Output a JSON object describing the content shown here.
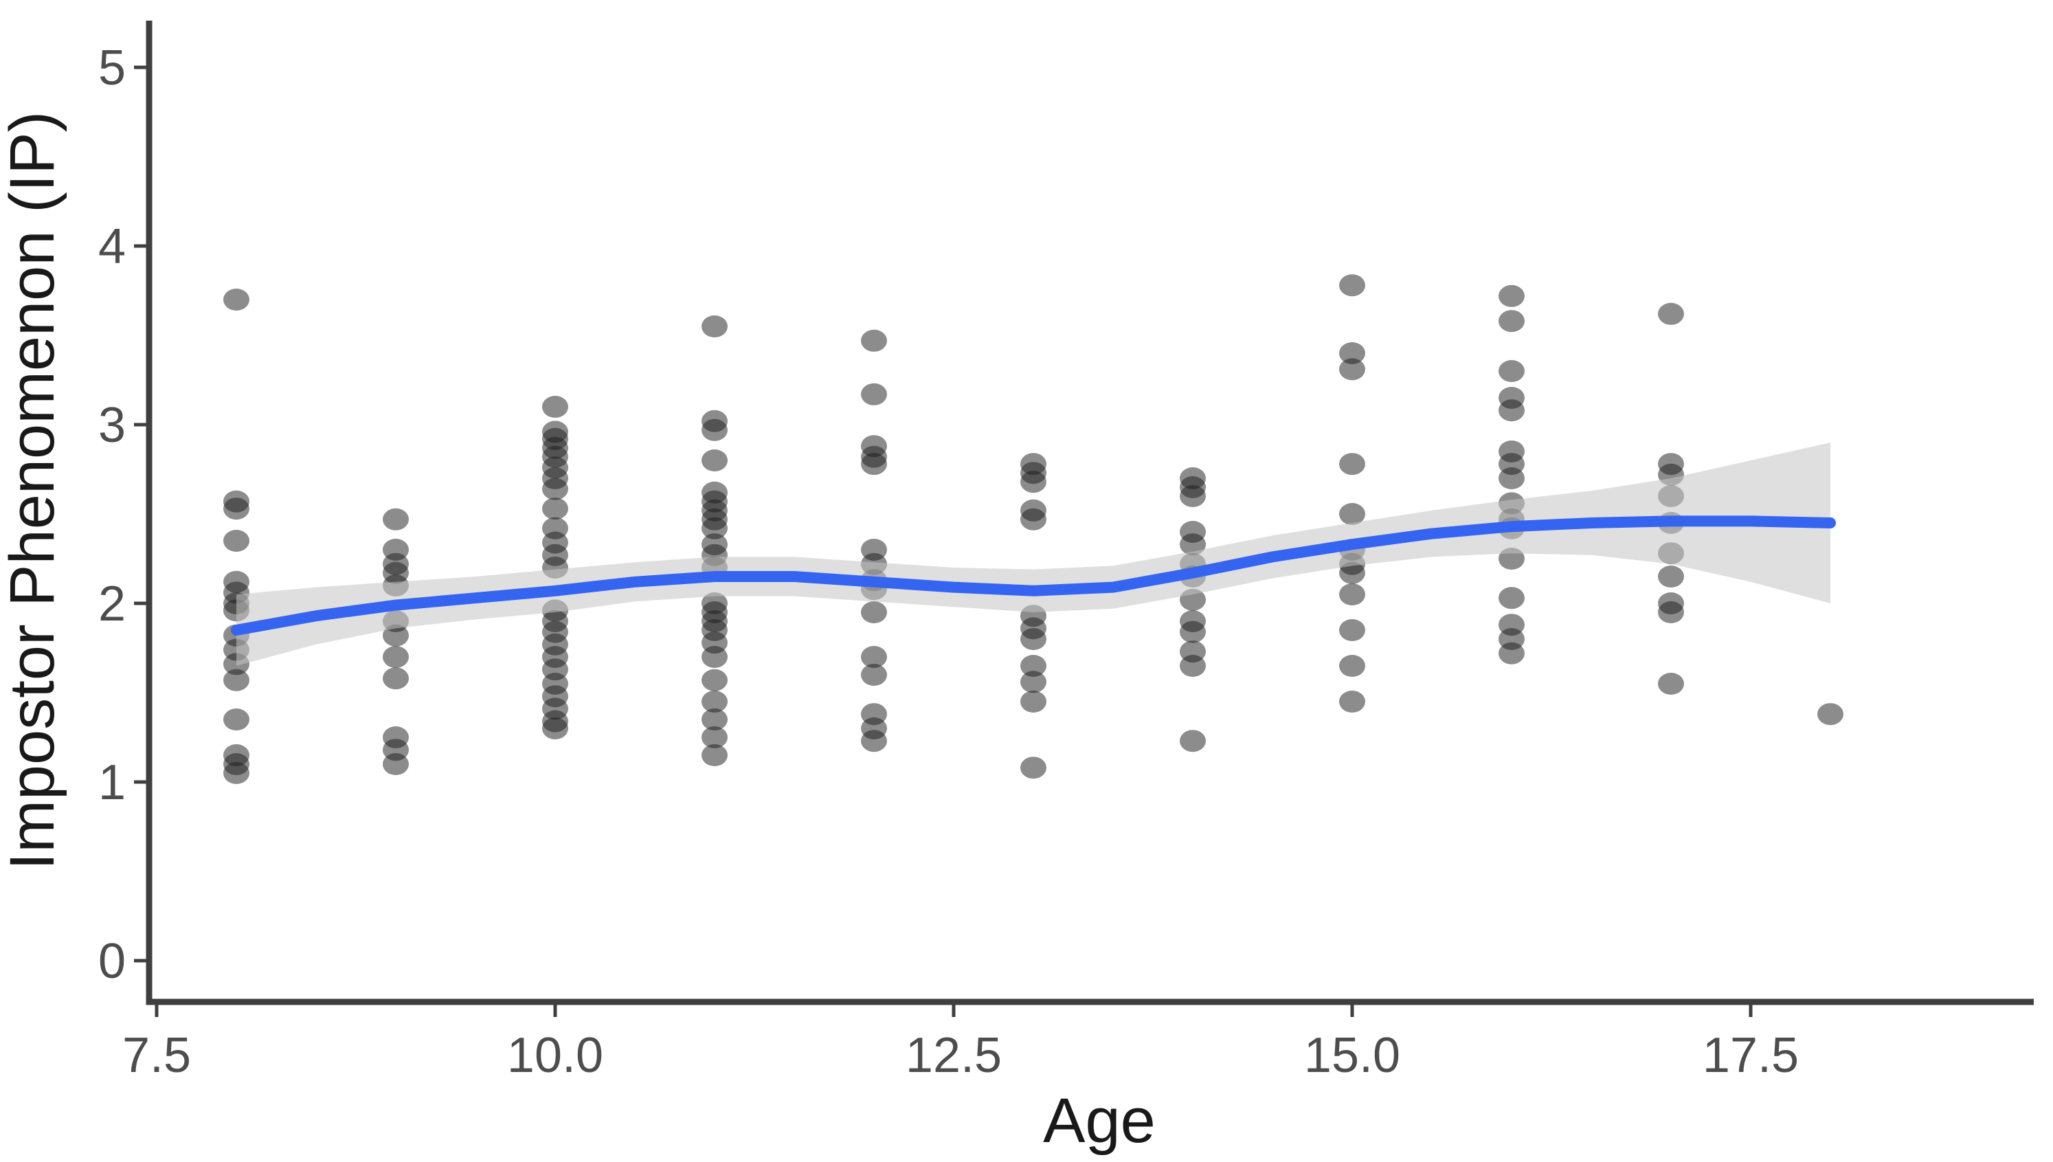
{
  "figure": {
    "background": "#ffffff",
    "title": ""
  },
  "chart_data": {
    "type": "scatter",
    "title": "",
    "xlabel": "Age",
    "ylabel": "Impostor Phenomenon (IP)",
    "x_ticks": [
      7.5,
      10.0,
      12.5,
      15.0,
      17.5
    ],
    "x_tick_labels": [
      "7.5",
      "10.0",
      "12.5",
      "15.0",
      "17.5"
    ],
    "y_ticks": [
      0,
      1,
      2,
      3,
      4,
      5
    ],
    "y_tick_labels": [
      "0",
      "1",
      "2",
      "3",
      "4",
      "5"
    ],
    "xlim": [
      7.45,
      19.4
    ],
    "ylim": [
      -0.25,
      5.25
    ],
    "grid": "off",
    "legend": "none",
    "styles": {
      "point_color": "#1a1a1a",
      "point_opacity": 0.5,
      "smooth_color": "#3565F0",
      "ribbon_color": "#C4C4C4",
      "ribbon_opacity": 0.55,
      "axis_color": "#3f3f3f",
      "tick_label_color": "#4d4d4d",
      "axis_title_color": "#191919"
    },
    "series": [
      {
        "name": "observations",
        "points": [
          [
            8,
            3.7
          ],
          [
            8,
            2.57
          ],
          [
            8,
            2.53
          ],
          [
            8,
            2.35
          ],
          [
            8,
            2.12
          ],
          [
            8,
            2.06
          ],
          [
            8,
            2.0
          ],
          [
            8,
            1.96
          ],
          [
            8,
            1.82
          ],
          [
            8,
            1.74
          ],
          [
            8,
            1.66
          ],
          [
            8,
            1.57
          ],
          [
            8,
            1.35
          ],
          [
            8,
            1.15
          ],
          [
            8,
            1.1
          ],
          [
            8,
            1.05
          ],
          [
            9,
            2.47
          ],
          [
            9,
            2.3
          ],
          [
            9,
            2.22
          ],
          [
            9,
            2.17
          ],
          [
            9,
            2.1
          ],
          [
            9,
            1.9
          ],
          [
            9,
            1.82
          ],
          [
            9,
            1.7
          ],
          [
            9,
            1.58
          ],
          [
            9,
            1.25
          ],
          [
            9,
            1.18
          ],
          [
            9,
            1.1
          ],
          [
            10,
            3.1
          ],
          [
            10,
            2.96
          ],
          [
            10,
            2.92
          ],
          [
            10,
            2.87
          ],
          [
            10,
            2.82
          ],
          [
            10,
            2.76
          ],
          [
            10,
            2.7
          ],
          [
            10,
            2.64
          ],
          [
            10,
            2.53
          ],
          [
            10,
            2.42
          ],
          [
            10,
            2.34
          ],
          [
            10,
            2.27
          ],
          [
            10,
            2.2
          ],
          [
            10,
            1.96
          ],
          [
            10,
            1.9
          ],
          [
            10,
            1.84
          ],
          [
            10,
            1.77
          ],
          [
            10,
            1.7
          ],
          [
            10,
            1.63
          ],
          [
            10,
            1.55
          ],
          [
            10,
            1.48
          ],
          [
            10,
            1.41
          ],
          [
            10,
            1.34
          ],
          [
            10,
            1.3
          ],
          [
            11,
            3.55
          ],
          [
            11,
            3.02
          ],
          [
            11,
            2.97
          ],
          [
            11,
            2.8
          ],
          [
            11,
            2.62
          ],
          [
            11,
            2.57
          ],
          [
            11,
            2.52
          ],
          [
            11,
            2.47
          ],
          [
            11,
            2.42
          ],
          [
            11,
            2.33
          ],
          [
            11,
            2.27
          ],
          [
            11,
            2.2
          ],
          [
            11,
            2.0
          ],
          [
            11,
            1.95
          ],
          [
            11,
            1.9
          ],
          [
            11,
            1.85
          ],
          [
            11,
            1.78
          ],
          [
            11,
            1.7
          ],
          [
            11,
            1.57
          ],
          [
            11,
            1.45
          ],
          [
            11,
            1.35
          ],
          [
            11,
            1.25
          ],
          [
            11,
            1.15
          ],
          [
            12,
            3.47
          ],
          [
            12,
            3.17
          ],
          [
            12,
            2.88
          ],
          [
            12,
            2.82
          ],
          [
            12,
            2.78
          ],
          [
            12,
            2.3
          ],
          [
            12,
            2.22
          ],
          [
            12,
            2.13
          ],
          [
            12,
            2.08
          ],
          [
            12,
            1.95
          ],
          [
            12,
            1.7
          ],
          [
            12,
            1.6
          ],
          [
            12,
            1.38
          ],
          [
            12,
            1.3
          ],
          [
            12,
            1.23
          ],
          [
            13,
            2.78
          ],
          [
            13,
            2.73
          ],
          [
            13,
            2.68
          ],
          [
            13,
            2.52
          ],
          [
            13,
            2.47
          ],
          [
            13,
            1.93
          ],
          [
            13,
            1.86
          ],
          [
            13,
            1.8
          ],
          [
            13,
            1.65
          ],
          [
            13,
            1.56
          ],
          [
            13,
            1.45
          ],
          [
            13,
            1.08
          ],
          [
            14,
            2.7
          ],
          [
            14,
            2.65
          ],
          [
            14,
            2.6
          ],
          [
            14,
            2.4
          ],
          [
            14,
            2.33
          ],
          [
            14,
            2.22
          ],
          [
            14,
            2.15
          ],
          [
            14,
            2.02
          ],
          [
            14,
            1.9
          ],
          [
            14,
            1.84
          ],
          [
            14,
            1.73
          ],
          [
            14,
            1.65
          ],
          [
            14,
            1.23
          ],
          [
            15,
            3.78
          ],
          [
            15,
            3.4
          ],
          [
            15,
            3.31
          ],
          [
            15,
            2.78
          ],
          [
            15,
            2.5
          ],
          [
            15,
            2.3
          ],
          [
            15,
            2.22
          ],
          [
            15,
            2.17
          ],
          [
            15,
            2.05
          ],
          [
            15,
            1.85
          ],
          [
            15,
            1.65
          ],
          [
            15,
            1.45
          ],
          [
            16,
            3.72
          ],
          [
            16,
            3.58
          ],
          [
            16,
            3.3
          ],
          [
            16,
            3.15
          ],
          [
            16,
            3.08
          ],
          [
            16,
            2.85
          ],
          [
            16,
            2.78
          ],
          [
            16,
            2.7
          ],
          [
            16,
            2.56
          ],
          [
            16,
            2.47
          ],
          [
            16,
            2.42
          ],
          [
            16,
            2.25
          ],
          [
            16,
            2.03
          ],
          [
            16,
            1.88
          ],
          [
            16,
            1.8
          ],
          [
            16,
            1.72
          ],
          [
            17,
            3.62
          ],
          [
            17,
            2.78
          ],
          [
            17,
            2.72
          ],
          [
            17,
            2.6
          ],
          [
            17,
            2.45
          ],
          [
            17,
            2.28
          ],
          [
            17,
            2.15
          ],
          [
            17,
            2.0
          ],
          [
            17,
            1.95
          ],
          [
            17,
            1.55
          ],
          [
            18,
            1.38
          ]
        ]
      }
    ],
    "smooth_line": [
      [
        8,
        1.85
      ],
      [
        8.5,
        1.93
      ],
      [
        9,
        1.99
      ],
      [
        9.5,
        2.03
      ],
      [
        10,
        2.07
      ],
      [
        10.5,
        2.12
      ],
      [
        11,
        2.15
      ],
      [
        11.5,
        2.15
      ],
      [
        12,
        2.12
      ],
      [
        12.5,
        2.09
      ],
      [
        13,
        2.07
      ],
      [
        13.5,
        2.09
      ],
      [
        14,
        2.17
      ],
      [
        14.5,
        2.26
      ],
      [
        15,
        2.33
      ],
      [
        15.5,
        2.39
      ],
      [
        16,
        2.43
      ],
      [
        16.5,
        2.45
      ],
      [
        17,
        2.46
      ],
      [
        17.5,
        2.46
      ],
      [
        18,
        2.45
      ]
    ],
    "ci_ribbon": [
      [
        8,
        1.65,
        2.05
      ],
      [
        8.5,
        1.77,
        2.09
      ],
      [
        9,
        1.86,
        2.12
      ],
      [
        9.5,
        1.91,
        2.15
      ],
      [
        10,
        1.95,
        2.19
      ],
      [
        10.5,
        2.01,
        2.23
      ],
      [
        11,
        2.04,
        2.26
      ],
      [
        11.5,
        2.04,
        2.26
      ],
      [
        12,
        2.01,
        2.23
      ],
      [
        12.5,
        1.98,
        2.2
      ],
      [
        13,
        1.95,
        2.19
      ],
      [
        13.5,
        1.97,
        2.21
      ],
      [
        14,
        2.05,
        2.29
      ],
      [
        14.5,
        2.14,
        2.38
      ],
      [
        15,
        2.21,
        2.45
      ],
      [
        15.5,
        2.26,
        2.52
      ],
      [
        16,
        2.28,
        2.58
      ],
      [
        16.5,
        2.27,
        2.63
      ],
      [
        17,
        2.22,
        2.7
      ],
      [
        17.5,
        2.12,
        2.8
      ],
      [
        18,
        2.0,
        2.9
      ]
    ]
  }
}
